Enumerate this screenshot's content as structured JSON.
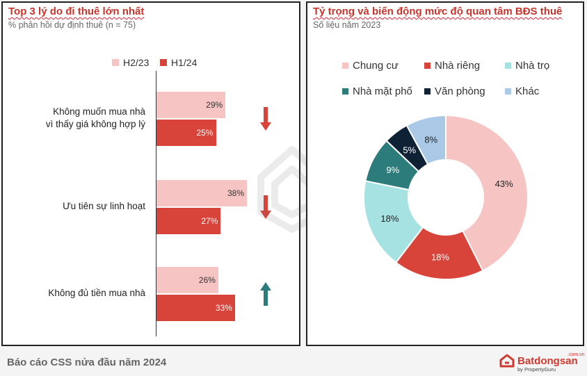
{
  "left": {
    "title": "Top 3 lý do đi thuê lớn nhất",
    "subtitle": "% phản hồi dự định thuê (n = 75)"
  },
  "right": {
    "title": "Tỷ trọng và biến động mức độ quan tâm BĐS thuê",
    "subtitle": "Số liệu năm 2023"
  },
  "footer": {
    "text": "Báo cáo CSS nửa đầu năm 2024",
    "logo_main": "Batdongsan",
    "logo_domain": ".com.vn",
    "logo_sub": "by PropertyGuru"
  },
  "colors": {
    "light": "#f6c4c3",
    "dark": "#d9443a",
    "teal": "#2b7c7a",
    "cyan": "#a7e2e3",
    "navy": "#0f2235",
    "lightblue": "#a9c9e6",
    "pink": "#f6c4c3",
    "red": "#d9443a"
  },
  "chart_data": [
    {
      "type": "bar",
      "orientation": "horizontal",
      "title": "Top 3 lý do đi thuê lớn nhất",
      "subtitle": "% phản hồi dự định thuê (n = 75)",
      "legend_position": "top",
      "categories": [
        [
          "Không muốn mua nhà",
          "vì thấy giá không hợp lý"
        ],
        [
          "Ưu tiên sự linh hoạt"
        ],
        [
          "Không đủ tiền mua nhà"
        ]
      ],
      "series": [
        {
          "name": "H2/23",
          "values": [
            29,
            38,
            26
          ],
          "labels": [
            "29%",
            "38%",
            "26%"
          ],
          "color": "#f6c4c3"
        },
        {
          "name": "H1/24",
          "values": [
            25,
            27,
            33
          ],
          "labels": [
            "25%",
            "27%",
            "33%"
          ],
          "color": "#d9443a"
        }
      ],
      "trend_icons": [
        "arrow-down-icon",
        "arrow-down-icon",
        "arrow-up-icon"
      ],
      "trend_colors": [
        "#d9443a",
        "#d9443a",
        "#2b7c7a"
      ],
      "xlim": [
        0,
        45
      ],
      "grid": false
    },
    {
      "type": "pie",
      "variant": "donut",
      "title": "Tỷ trọng và biến động mức độ quan tâm BĐS thuê",
      "subtitle": "Số liệu năm 2023",
      "legend_position": "top",
      "slices": [
        {
          "name": "Chung cư",
          "value": 43,
          "label": "43%",
          "color": "#f6c4c3"
        },
        {
          "name": "Nhà riêng",
          "value": 18,
          "label": "18%",
          "color": "#d9443a"
        },
        {
          "name": "Nhà trọ",
          "value": 18,
          "label": "18%",
          "color": "#a7e2e3"
        },
        {
          "name": "Nhà mặt phố",
          "value": 9,
          "label": "9%",
          "color": "#2b7c7a"
        },
        {
          "name": "Văn phòng",
          "value": 5,
          "label": "5%",
          "color": "#0f2235"
        },
        {
          "name": "Khác",
          "value": 8,
          "label": "8%",
          "color": "#a9c9e6"
        }
      ]
    }
  ]
}
